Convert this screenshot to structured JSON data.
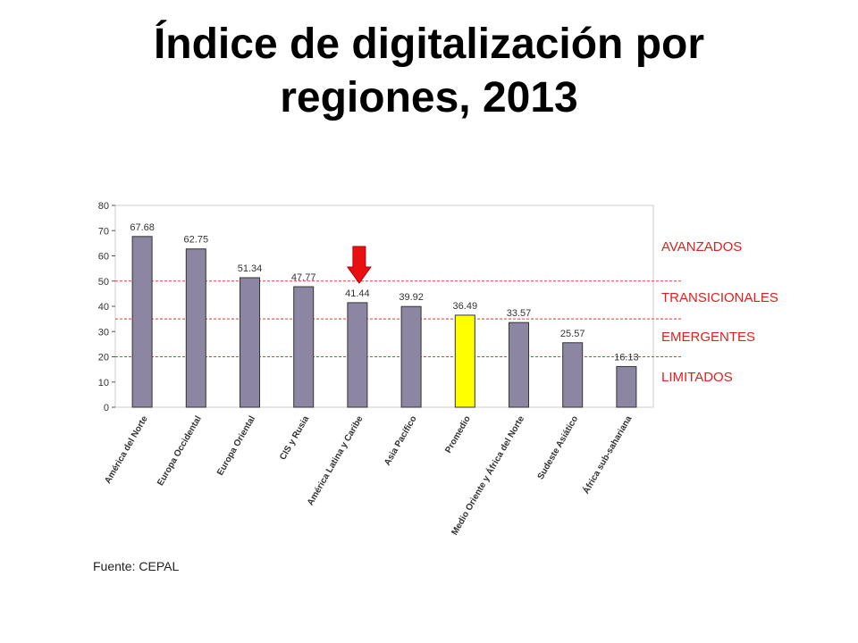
{
  "slide": {
    "title_line1": "Índice de digitalización por",
    "title_line2": "regiones, 2013",
    "source": "Fuente: CEPAL"
  },
  "colors": {
    "bar": "#8c86a3",
    "bar_highlight": "#ffff00",
    "threshold_line": "#e63a3a",
    "zone_label": "#e02020",
    "arrow": "#e81010",
    "axis": "#555555"
  },
  "chart_data": {
    "type": "bar",
    "title": "",
    "xlabel": "",
    "ylabel": "",
    "ylim": [
      0,
      80
    ],
    "yticks": [
      0,
      10,
      20,
      30,
      40,
      50,
      60,
      70,
      80
    ],
    "grid": false,
    "categories": [
      "América del Norte",
      "Europa Occidental",
      "Europa Oriental",
      "CIS y Rusia",
      "América Latina y Caribe",
      "Asia Pacífico",
      "Promedio",
      "Medio Oriente y África del Norte",
      "Sudeste Asiático",
      "África sub-sahariana"
    ],
    "values": [
      67.68,
      62.75,
      51.34,
      47.77,
      41.44,
      39.92,
      36.49,
      33.57,
      25.57,
      16.13
    ],
    "value_labels": [
      "67.68",
      "62.75",
      "51.34",
      "47.77",
      "41.44",
      "39.92",
      "36.49",
      "33.57",
      "25.57",
      "16.13"
    ],
    "highlight_category": "Promedio",
    "arrow_category": "América Latina y Caribe",
    "thresholds": [
      50,
      35,
      20
    ],
    "zones": [
      "AVANZADOS",
      "TRANSICIONALES",
      "EMERGENTES",
      "LIMITADOS"
    ]
  }
}
